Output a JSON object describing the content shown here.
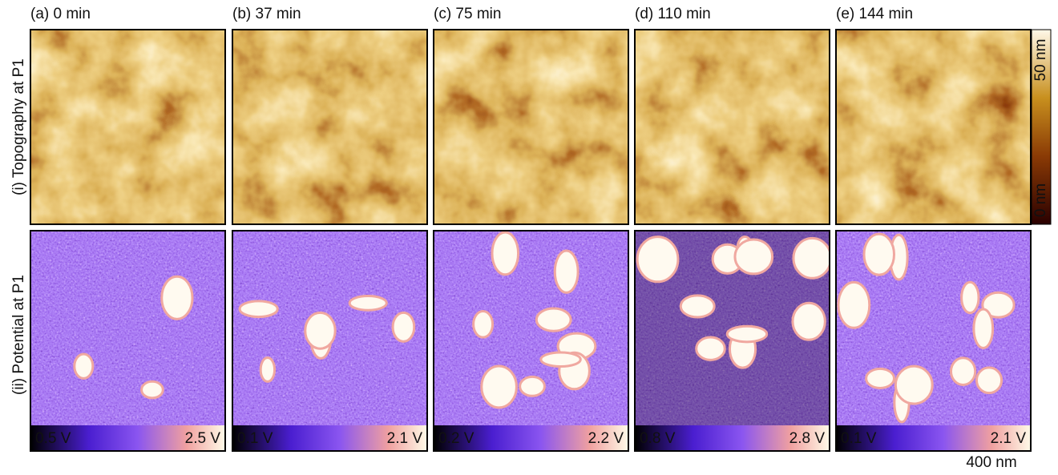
{
  "rows": [
    "(i) Topography at P1",
    "(ii) Potential at P1"
  ],
  "panels": [
    {
      "label": "(a) 0 min",
      "potential_min": "0.5 V",
      "potential_max": "2.5 V"
    },
    {
      "label": "(b) 37 min",
      "potential_min": "0.1 V",
      "potential_max": "2.1 V"
    },
    {
      "label": "(c) 75 min",
      "potential_min": "0.2 V",
      "potential_max": "2.2 V"
    },
    {
      "label": "(d) 110 min",
      "potential_min": "0.8 V",
      "potential_max": "2.8 V"
    },
    {
      "label": "(e) 144 min",
      "potential_min": "0.1 V",
      "potential_max": "2.1 V"
    }
  ],
  "topography_scale": {
    "max": "50 nm",
    "min": "0 nm"
  },
  "scale_bar": "400 nm"
}
